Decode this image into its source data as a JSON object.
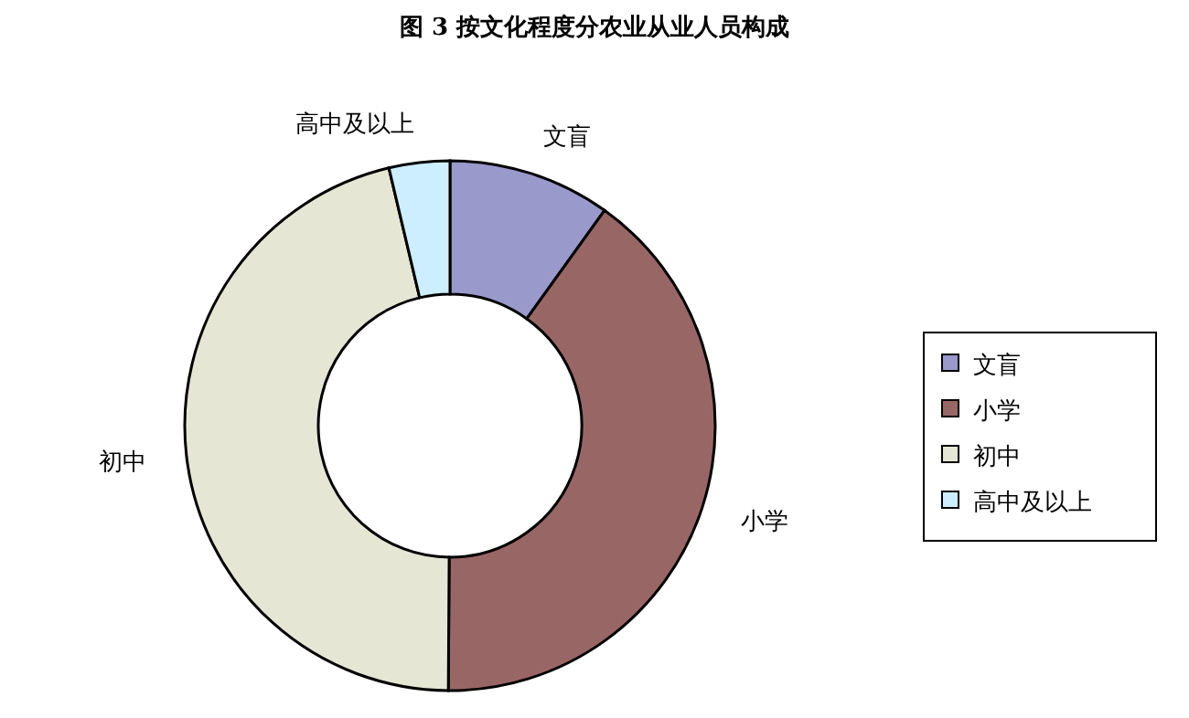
{
  "chart_data": {
    "type": "donut",
    "title": "图 3   按文化程度分农业从业人员构成",
    "categories": [
      "文盲",
      "小学",
      "初中",
      "高中及以上"
    ],
    "values": [
      9.9,
      40.2,
      46.2,
      3.7
    ],
    "colors": [
      "#9999cc",
      "#996666",
      "#e6e6d4",
      "#cceeff"
    ],
    "legend": "right"
  }
}
